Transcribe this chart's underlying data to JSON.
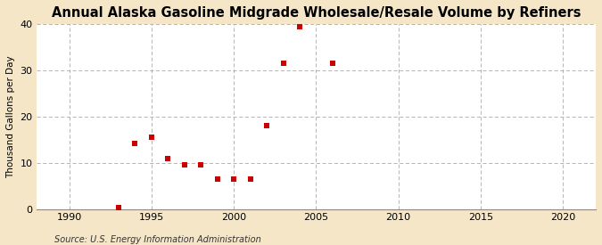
{
  "title": "Annual Alaska Gasoline Midgrade Wholesale/Resale Volume by Refiners",
  "ylabel": "Thousand Gallons per Day",
  "source": "Source: U.S. Energy Information Administration",
  "background_color": "#f5e6c8",
  "plot_background_color": "#ffffff",
  "marker_color": "#cc0000",
  "marker": "s",
  "marker_size": 4,
  "xlim": [
    1988,
    2022
  ],
  "ylim": [
    0,
    40
  ],
  "xticks": [
    1990,
    1995,
    2000,
    2005,
    2010,
    2015,
    2020
  ],
  "yticks": [
    0,
    10,
    20,
    30,
    40
  ],
  "grid_color": "#aaaaaa",
  "data_x": [
    1993,
    1994,
    1995,
    1996,
    1997,
    1998,
    1999,
    2000,
    2001,
    2002,
    2003,
    2004,
    2006
  ],
  "data_y": [
    0.3,
    14.2,
    15.5,
    11.0,
    9.5,
    9.5,
    6.5,
    6.5,
    6.5,
    18.0,
    31.5,
    39.5,
    31.5
  ]
}
